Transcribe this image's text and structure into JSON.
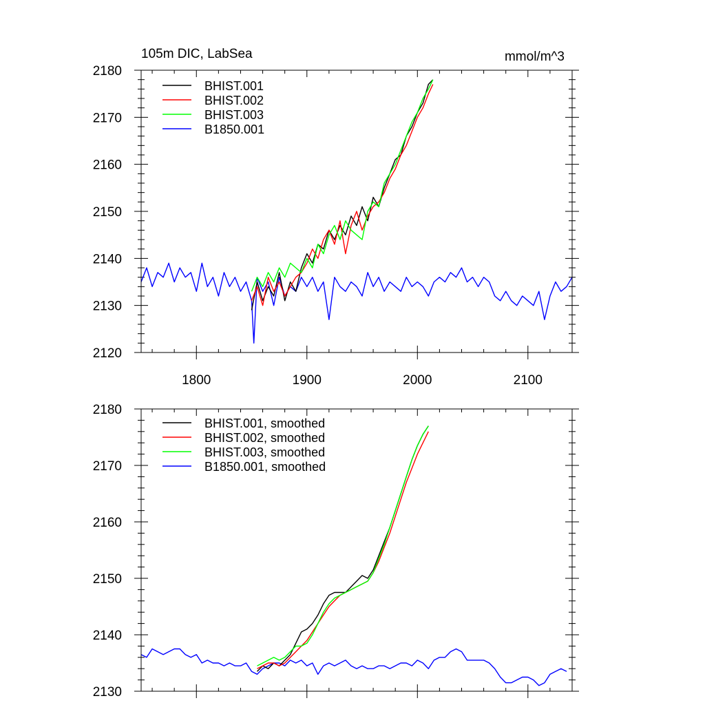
{
  "header": {
    "title": "105m DIC, LabSea",
    "units": "mmol/m^3"
  },
  "chart_data": [
    {
      "type": "line",
      "title": "105m DIC, LabSea",
      "units": "mmol/m^3",
      "xlim": [
        1750,
        2140
      ],
      "ylim": [
        2120,
        2180
      ],
      "x_ticks": [
        1800,
        1900,
        2000,
        2100
      ],
      "x_tick_labels": [
        "1800",
        "1900",
        "2000",
        "2100"
      ],
      "y_ticks": [
        2120,
        2130,
        2140,
        2150,
        2160,
        2170,
        2180
      ],
      "y_tick_labels": [
        "2120",
        "2130",
        "2140",
        "2150",
        "2160",
        "2170",
        "2180"
      ],
      "grid": false,
      "legend_position": "top-left",
      "series": [
        {
          "name": "BHIST.001",
          "color": "#000000",
          "x": [
            1850,
            1855,
            1860,
            1865,
            1870,
            1875,
            1880,
            1885,
            1890,
            1895,
            1900,
            1905,
            1910,
            1915,
            1920,
            1925,
            1930,
            1935,
            1940,
            1945,
            1950,
            1955,
            1960,
            1965,
            1970,
            1975,
            1980,
            1985,
            1990,
            1995,
            2000,
            2005,
            2010,
            2014
          ],
          "y": [
            2129,
            2135,
            2131,
            2134,
            2132,
            2137,
            2131,
            2135,
            2133,
            2138,
            2141,
            2139,
            2143,
            2142,
            2146,
            2144,
            2147,
            2145,
            2149,
            2147,
            2151,
            2148,
            2153,
            2151,
            2155,
            2158,
            2161,
            2162,
            2166,
            2168,
            2171,
            2173,
            2177,
            2178
          ]
        },
        {
          "name": "BHIST.002",
          "color": "#ff0000",
          "x": [
            1850,
            1855,
            1860,
            1865,
            1870,
            1875,
            1880,
            1885,
            1890,
            1895,
            1900,
            1905,
            1910,
            1915,
            1920,
            1925,
            1930,
            1935,
            1940,
            1945,
            1950,
            1955,
            1960,
            1965,
            1970,
            1975,
            1980,
            1985,
            1990,
            1995,
            2000,
            2005,
            2010,
            2014
          ],
          "y": [
            2131,
            2134,
            2130,
            2136,
            2133,
            2135,
            2132,
            2134,
            2136,
            2137,
            2139,
            2142,
            2140,
            2144,
            2146,
            2143,
            2148,
            2141,
            2147,
            2150,
            2146,
            2149,
            2151,
            2152,
            2154,
            2157,
            2159,
            2162,
            2164,
            2167,
            2170,
            2172,
            2175,
            2177
          ]
        },
        {
          "name": "BHIST.003",
          "color": "#00ff00",
          "x": [
            1850,
            1855,
            1860,
            1865,
            1870,
            1875,
            1880,
            1885,
            1890,
            1895,
            1900,
            1905,
            1910,
            1915,
            1920,
            1925,
            1930,
            1935,
            1940,
            1945,
            1950,
            1955,
            1960,
            1965,
            1970,
            1975,
            1980,
            1985,
            1990,
            1995,
            2000,
            2005,
            2010,
            2014
          ],
          "y": [
            2133,
            2136,
            2134,
            2137,
            2135,
            2138,
            2136,
            2139,
            2138,
            2137,
            2140,
            2138,
            2143,
            2141,
            2145,
            2147,
            2144,
            2148,
            2146,
            2145,
            2144,
            2150,
            2152,
            2151,
            2156,
            2158,
            2160,
            2163,
            2166,
            2169,
            2171,
            2174,
            2176,
            2178
          ]
        },
        {
          "name": "B1850.001",
          "color": "#0000ff",
          "x": [
            1750,
            1755,
            1760,
            1765,
            1770,
            1775,
            1780,
            1785,
            1790,
            1795,
            1800,
            1805,
            1810,
            1815,
            1820,
            1825,
            1830,
            1835,
            1840,
            1845,
            1850,
            1852,
            1855,
            1860,
            1865,
            1870,
            1875,
            1880,
            1885,
            1890,
            1895,
            1900,
            1905,
            1910,
            1915,
            1920,
            1925,
            1930,
            1935,
            1940,
            1945,
            1950,
            1955,
            1960,
            1965,
            1970,
            1975,
            1980,
            1985,
            1990,
            1995,
            2000,
            2005,
            2010,
            2015,
            2020,
            2025,
            2030,
            2035,
            2040,
            2045,
            2050,
            2055,
            2060,
            2065,
            2070,
            2075,
            2080,
            2085,
            2090,
            2095,
            2100,
            2105,
            2110,
            2115,
            2120,
            2125,
            2130,
            2135,
            2140
          ],
          "y": [
            2135,
            2138,
            2134,
            2137,
            2136,
            2139,
            2135,
            2138,
            2136,
            2137,
            2133,
            2139,
            2134,
            2136,
            2132,
            2137,
            2134,
            2136,
            2133,
            2135,
            2131,
            2122,
            2136,
            2133,
            2135,
            2130,
            2136,
            2132,
            2134,
            2133,
            2136,
            2134,
            2136,
            2133,
            2135,
            2127,
            2136,
            2134,
            2133,
            2135,
            2134,
            2132,
            2137,
            2134,
            2136,
            2133,
            2135,
            2134,
            2133,
            2136,
            2134,
            2135,
            2134,
            2132,
            2135,
            2136,
            2135,
            2137,
            2136,
            2138,
            2135,
            2136,
            2134,
            2136,
            2135,
            2132,
            2131,
            2133,
            2131,
            2130,
            2132,
            2131,
            2130,
            2133,
            2127,
            2132,
            2135,
            2133,
            2134,
            2136
          ]
        }
      ]
    },
    {
      "type": "line",
      "xlim": [
        1750,
        2140
      ],
      "ylim": [
        2130,
        2180
      ],
      "x_ticks": [
        1800,
        1900,
        2000,
        2100
      ],
      "y_ticks": [
        2130,
        2140,
        2150,
        2160,
        2170,
        2180
      ],
      "y_tick_labels": [
        "2130",
        "2140",
        "2150",
        "2160",
        "2170",
        "2180"
      ],
      "grid": false,
      "legend_position": "top-left",
      "series": [
        {
          "name": "BHIST.001, smoothed",
          "color": "#000000",
          "x": [
            1855,
            1860,
            1865,
            1870,
            1875,
            1880,
            1885,
            1890,
            1895,
            1900,
            1905,
            1910,
            1915,
            1920,
            1925,
            1930,
            1935,
            1940,
            1945,
            1950,
            1955,
            1960,
            1965,
            1970,
            1975,
            1980,
            1985,
            1990,
            1995,
            2000,
            2005,
            2010
          ],
          "y": [
            2133.5,
            2134.5,
            2134.0,
            2135.0,
            2134.5,
            2135.5,
            2136.5,
            2138.5,
            2140.5,
            2141.0,
            2142.0,
            2143.5,
            2145.5,
            2147.0,
            2147.5,
            2147.5,
            2147.5,
            2148.5,
            2149.5,
            2150.5,
            2150.0,
            2151.5,
            2154.0,
            2156.5,
            2159.0,
            2162.0,
            2165.0,
            2168.0,
            2171.0,
            2173.5,
            2175.5,
            2177.0
          ]
        },
        {
          "name": "BHIST.002, smoothed",
          "color": "#ff0000",
          "x": [
            1855,
            1860,
            1865,
            1870,
            1875,
            1880,
            1885,
            1890,
            1895,
            1900,
            1905,
            1910,
            1915,
            1920,
            1925,
            1930,
            1935,
            1940,
            1945,
            1950,
            1955,
            1960,
            1965,
            1970,
            1975,
            1980,
            1985,
            1990,
            1995,
            2000,
            2005,
            2010
          ],
          "y": [
            2134.0,
            2134.5,
            2135.0,
            2135.0,
            2134.5,
            2135.0,
            2136.0,
            2137.0,
            2138.0,
            2139.0,
            2140.5,
            2142.0,
            2143.5,
            2145.0,
            2146.0,
            2147.0,
            2147.5,
            2148.0,
            2148.5,
            2149.0,
            2149.5,
            2151.0,
            2153.0,
            2155.5,
            2158.0,
            2161.0,
            2164.0,
            2167.0,
            2169.5,
            2172.0,
            2174.0,
            2176.0
          ]
        },
        {
          "name": "BHIST.003, smoothed",
          "color": "#00ff00",
          "x": [
            1855,
            1860,
            1865,
            1870,
            1875,
            1880,
            1885,
            1890,
            1895,
            1900,
            1905,
            1910,
            1915,
            1920,
            1925,
            1930,
            1935,
            1940,
            1945,
            1950,
            1955,
            1960,
            1965,
            1970,
            1975,
            1980,
            1985,
            1990,
            1995,
            2000,
            2005,
            2010
          ],
          "y": [
            2134.5,
            2135.0,
            2135.5,
            2136.0,
            2135.5,
            2136.0,
            2137.0,
            2138.0,
            2138.0,
            2138.5,
            2140.0,
            2142.0,
            2144.0,
            2145.5,
            2146.5,
            2147.0,
            2147.5,
            2148.0,
            2148.5,
            2149.0,
            2149.5,
            2151.0,
            2153.5,
            2156.0,
            2159.0,
            2162.0,
            2165.0,
            2168.0,
            2171.0,
            2173.5,
            2175.5,
            2177.0
          ]
        },
        {
          "name": "B1850.001, smoothed",
          "color": "#0000ff",
          "x": [
            1750,
            1755,
            1760,
            1765,
            1770,
            1775,
            1780,
            1785,
            1790,
            1795,
            1800,
            1805,
            1810,
            1815,
            1820,
            1825,
            1830,
            1835,
            1840,
            1845,
            1850,
            1855,
            1860,
            1865,
            1870,
            1875,
            1880,
            1885,
            1890,
            1895,
            1900,
            1905,
            1910,
            1915,
            1920,
            1925,
            1930,
            1935,
            1940,
            1945,
            1950,
            1955,
            1960,
            1965,
            1970,
            1975,
            1980,
            1985,
            1990,
            1995,
            2000,
            2005,
            2010,
            2015,
            2020,
            2025,
            2030,
            2035,
            2040,
            2045,
            2050,
            2055,
            2060,
            2065,
            2070,
            2075,
            2080,
            2085,
            2090,
            2095,
            2100,
            2105,
            2110,
            2115,
            2120,
            2125,
            2130,
            2135
          ],
          "y": [
            2136.5,
            2136.0,
            2137.5,
            2137.0,
            2136.5,
            2137.0,
            2137.5,
            2137.5,
            2136.5,
            2136.0,
            2136.5,
            2135.0,
            2135.5,
            2135.0,
            2135.0,
            2134.5,
            2135.0,
            2134.5,
            2134.5,
            2135.0,
            2133.5,
            2133.0,
            2134.0,
            2134.5,
            2135.0,
            2135.0,
            2134.5,
            2135.5,
            2135.0,
            2135.5,
            2134.5,
            2135.0,
            2133.0,
            2134.5,
            2135.0,
            2134.5,
            2135.0,
            2135.5,
            2134.5,
            2134.0,
            2134.5,
            2134.0,
            2134.0,
            2134.5,
            2134.5,
            2134.0,
            2134.5,
            2135.0,
            2135.0,
            2134.5,
            2135.5,
            2135.0,
            2134.0,
            2135.5,
            2136.0,
            2136.0,
            2137.0,
            2137.5,
            2137.0,
            2135.5,
            2135.5,
            2135.5,
            2135.5,
            2135.0,
            2134.0,
            2132.5,
            2131.5,
            2131.5,
            2132.0,
            2132.5,
            2132.5,
            2132.0,
            2131.0,
            2131.5,
            2133.0,
            2133.5,
            2134.0,
            2133.5
          ]
        }
      ]
    }
  ]
}
